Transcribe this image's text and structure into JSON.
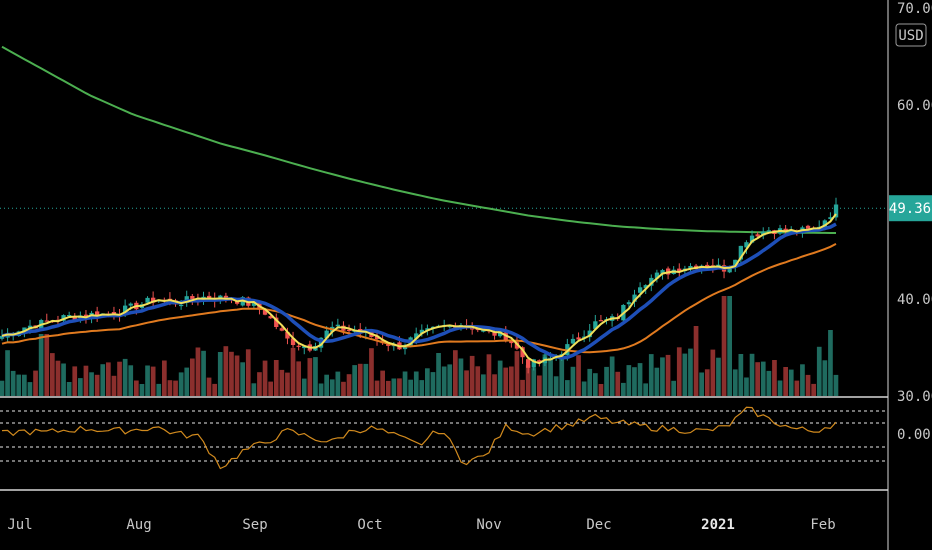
{
  "chart_data": {
    "type": "candlestick",
    "currency": "USD",
    "last_price": "49.36",
    "price_axis": {
      "ticks": [
        "70.00",
        "60.00",
        "40.00",
        "30.00"
      ],
      "tick_values": [
        70,
        60,
        40,
        30
      ]
    },
    "time_axis": {
      "labels": [
        "Jul",
        "Aug",
        "Sep",
        "Oct",
        "Nov",
        "Dec",
        "2021",
        "Feb"
      ]
    },
    "oscillator_axis": {
      "ticks": [
        "0.00"
      ]
    },
    "colors": {
      "background": "#000000",
      "up": "#26a69a",
      "down": "#ef5350",
      "volume_up": "#1f6b5f",
      "volume_down": "#8b2f2d",
      "ma_fast": "#f1e05a",
      "ma_mid": "#1e4fb8",
      "ma_slow": "#e07a1f",
      "ma_long": "#4caf50",
      "oscillator": "#d18a1e",
      "price_badge": "#26a69a"
    },
    "series": [
      {
        "name": "close",
        "values": [
          36.2,
          37.1,
          37.6,
          38.2,
          38.4,
          38.5,
          39.2,
          40.0,
          39.6,
          40.2,
          40.1,
          39.8,
          38.6,
          35.8,
          35.0,
          37.0,
          36.8,
          36.0,
          35.0,
          36.3,
          37.1,
          37.5,
          36.6,
          36.2,
          33.2,
          33.8,
          35.5,
          37.5,
          38.0,
          41.5,
          42.6,
          43.3,
          43.6,
          43.1,
          46.5,
          47.2,
          46.9,
          47.1,
          49.4
        ]
      },
      {
        "name": "long_ma",
        "values": [
          66.0,
          63.5,
          61.0,
          59.0,
          57.5,
          56.0,
          54.8,
          53.5,
          52.3,
          51.2,
          50.2,
          49.4,
          48.6,
          48.0,
          47.5,
          47.2,
          47.0,
          46.9,
          46.85,
          46.8
        ]
      },
      {
        "name": "oscillator",
        "values": [
          0.0,
          0.1,
          0.05,
          0.15,
          0.2,
          0.1,
          0.15,
          0.25,
          0.0,
          -0.1,
          -1.2,
          -0.6,
          -0.3,
          0.1,
          -0.1,
          -0.3,
          0.15,
          0.2,
          -0.1,
          -0.4,
          0.2,
          -1.0,
          -0.8,
          0.3,
          0.0,
          0.2,
          0.35,
          0.6,
          0.4,
          0.3,
          0.2,
          0.15,
          0.1,
          0.25,
          0.9,
          0.5,
          0.2,
          0.1,
          0.4
        ]
      }
    ]
  }
}
